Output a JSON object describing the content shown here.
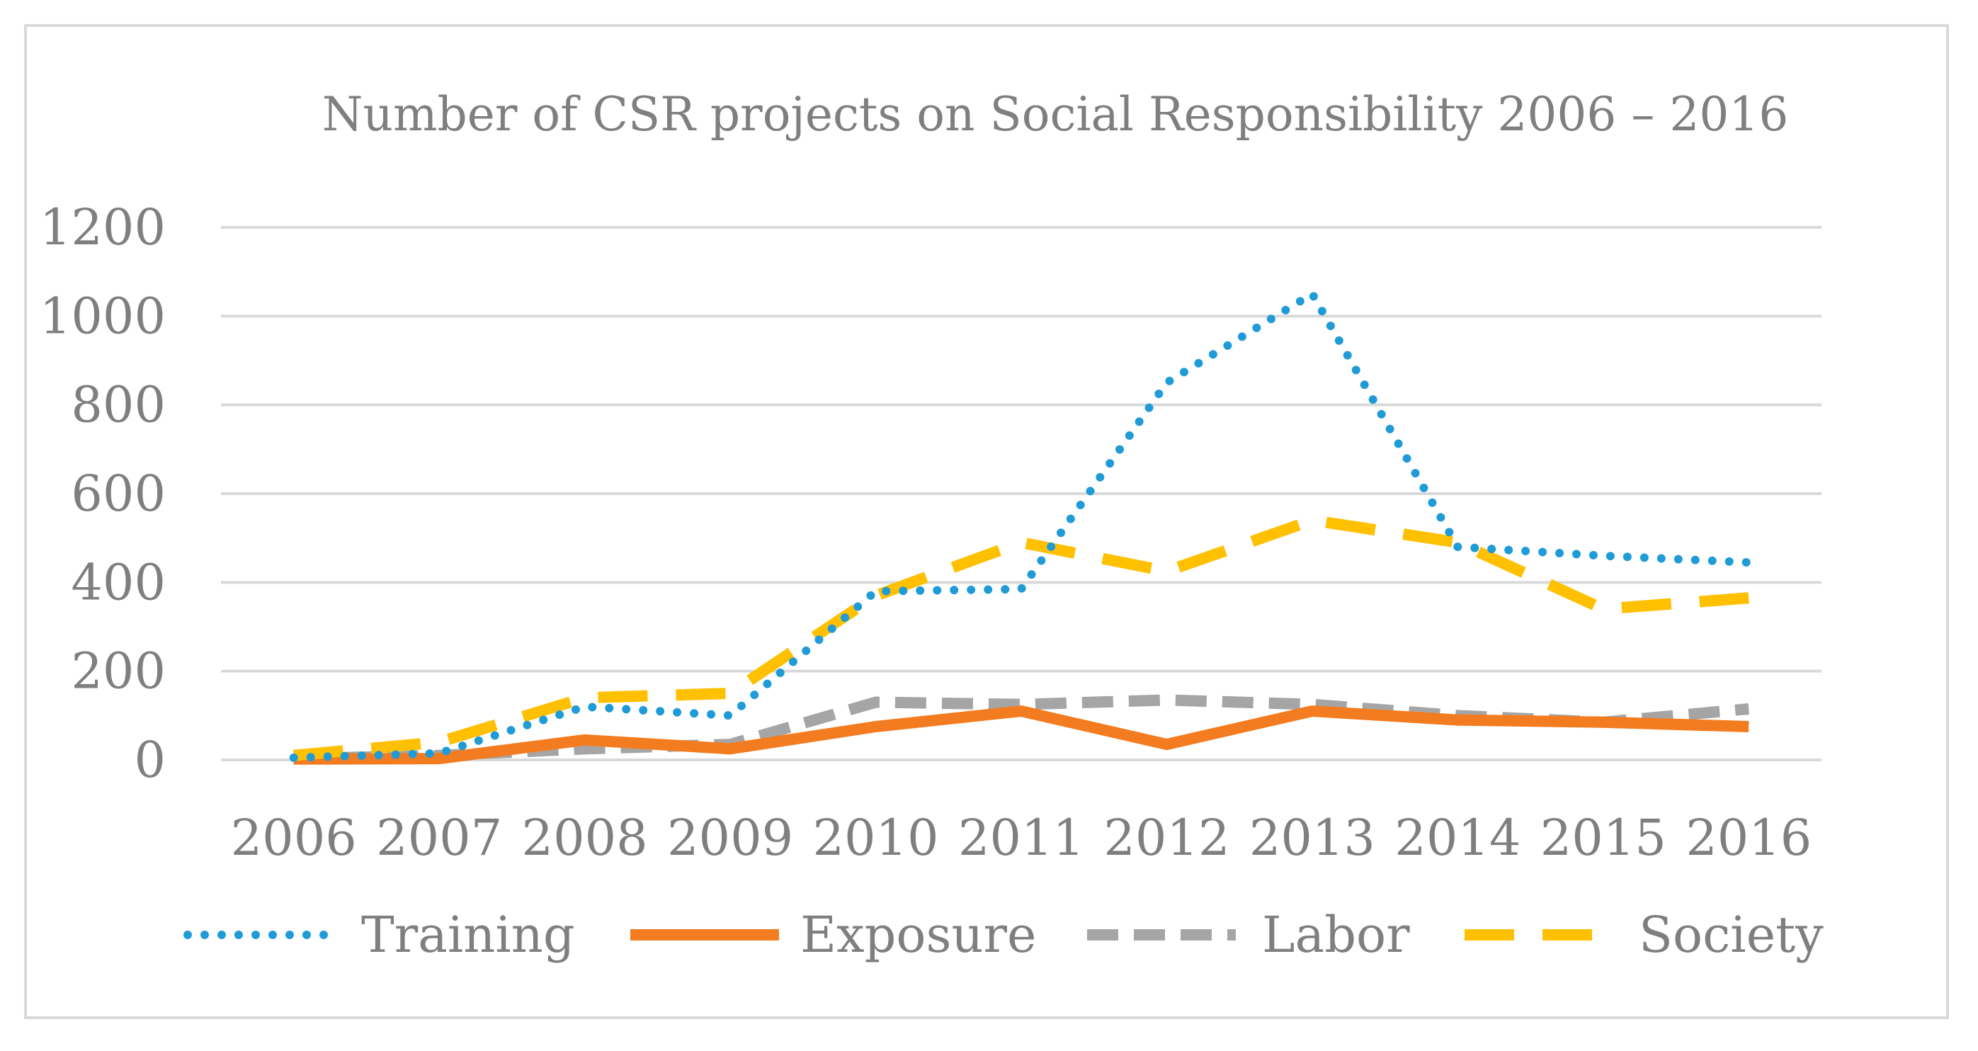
{
  "chart_data": {
    "type": "line",
    "title": "Number of CSR projects on Social Responsibility 2006 – 2016",
    "xlabel": "",
    "ylabel": "",
    "ylim": [
      0,
      1200
    ],
    "yticks": [
      "0",
      "200",
      "400",
      "600",
      "800",
      "1000",
      "1200"
    ],
    "categories": [
      "2006",
      "2007",
      "2008",
      "2009",
      "2010",
      "2011",
      "2012",
      "2013",
      "2014",
      "2015",
      "2016"
    ],
    "grid": true,
    "legend_position": "bottom",
    "series": [
      {
        "name": "Training",
        "color": "#1f9bd7",
        "style": "dotted",
        "values": [
          5,
          15,
          120,
          100,
          380,
          385,
          850,
          1050,
          480,
          460,
          445
        ]
      },
      {
        "name": "Exposure",
        "color": "#f47c20",
        "style": "solid",
        "values": [
          2,
          3,
          45,
          25,
          75,
          110,
          35,
          110,
          90,
          85,
          75
        ]
      },
      {
        "name": "Labor",
        "color": "#a5a5a5",
        "style": "dashed",
        "values": [
          3,
          10,
          25,
          35,
          130,
          125,
          135,
          125,
          100,
          85,
          115
        ]
      },
      {
        "name": "Society",
        "color": "#ffc000",
        "style": "longdash",
        "values": [
          10,
          40,
          140,
          150,
          370,
          490,
          425,
          540,
          490,
          340,
          365
        ]
      }
    ]
  }
}
